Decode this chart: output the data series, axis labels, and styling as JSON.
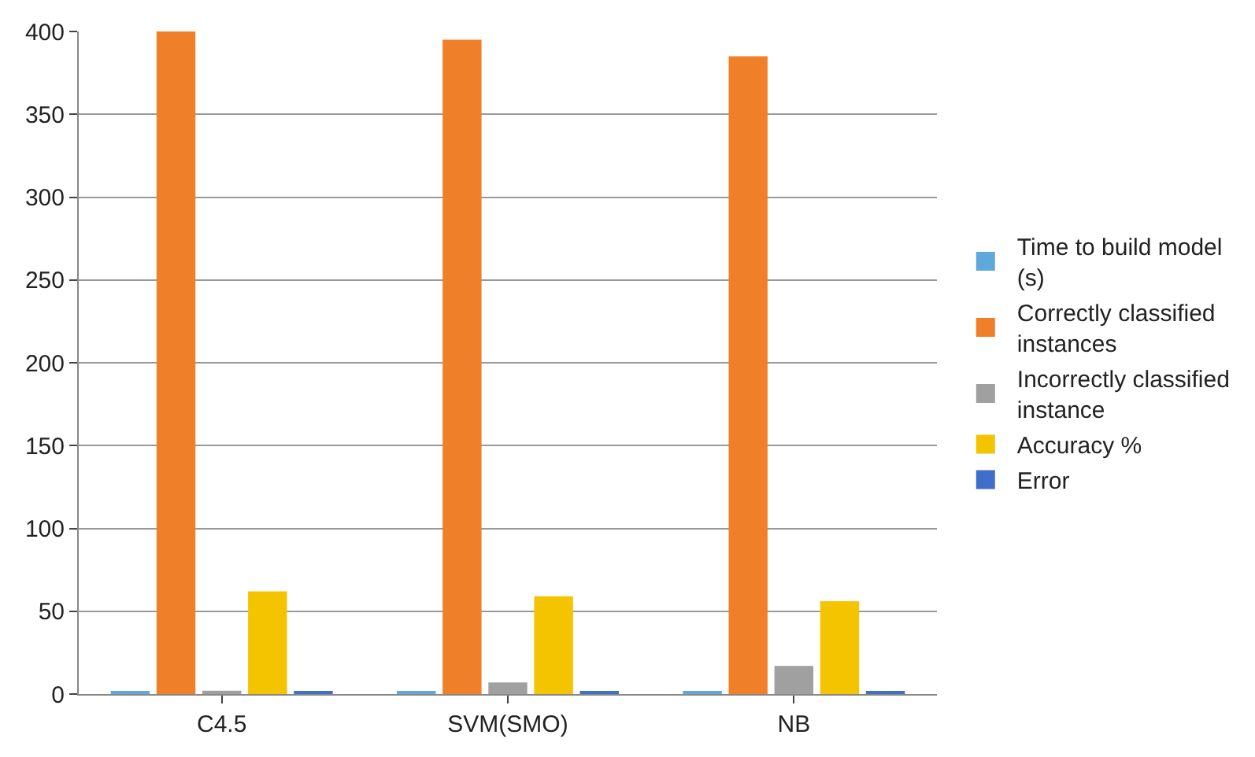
{
  "chart_data": {
    "type": "bar",
    "categories": [
      "C4.5",
      "SVM(SMO)",
      "NB"
    ],
    "series": [
      {
        "name": "Time to build model (s)",
        "color": "#5fa8dc",
        "values": [
          1,
          1,
          1
        ]
      },
      {
        "name": "Correctly classified instances",
        "color": "#f07f2a",
        "values": [
          400,
          395,
          385
        ]
      },
      {
        "name": "Incorrectly classified instance",
        "color": "#a0a0a0",
        "values": [
          2,
          7,
          17
        ]
      },
      {
        "name": "Accuracy %",
        "color": "#f5c400",
        "values": [
          62,
          59,
          56
        ]
      },
      {
        "name": "Error",
        "color": "#3f6fc9",
        "values": [
          1,
          1,
          1
        ]
      }
    ],
    "ylim": [
      0,
      400
    ],
    "yticks": [
      0,
      50,
      100,
      150,
      200,
      250,
      300,
      350,
      400
    ],
    "grid": "y",
    "legend": "right"
  }
}
